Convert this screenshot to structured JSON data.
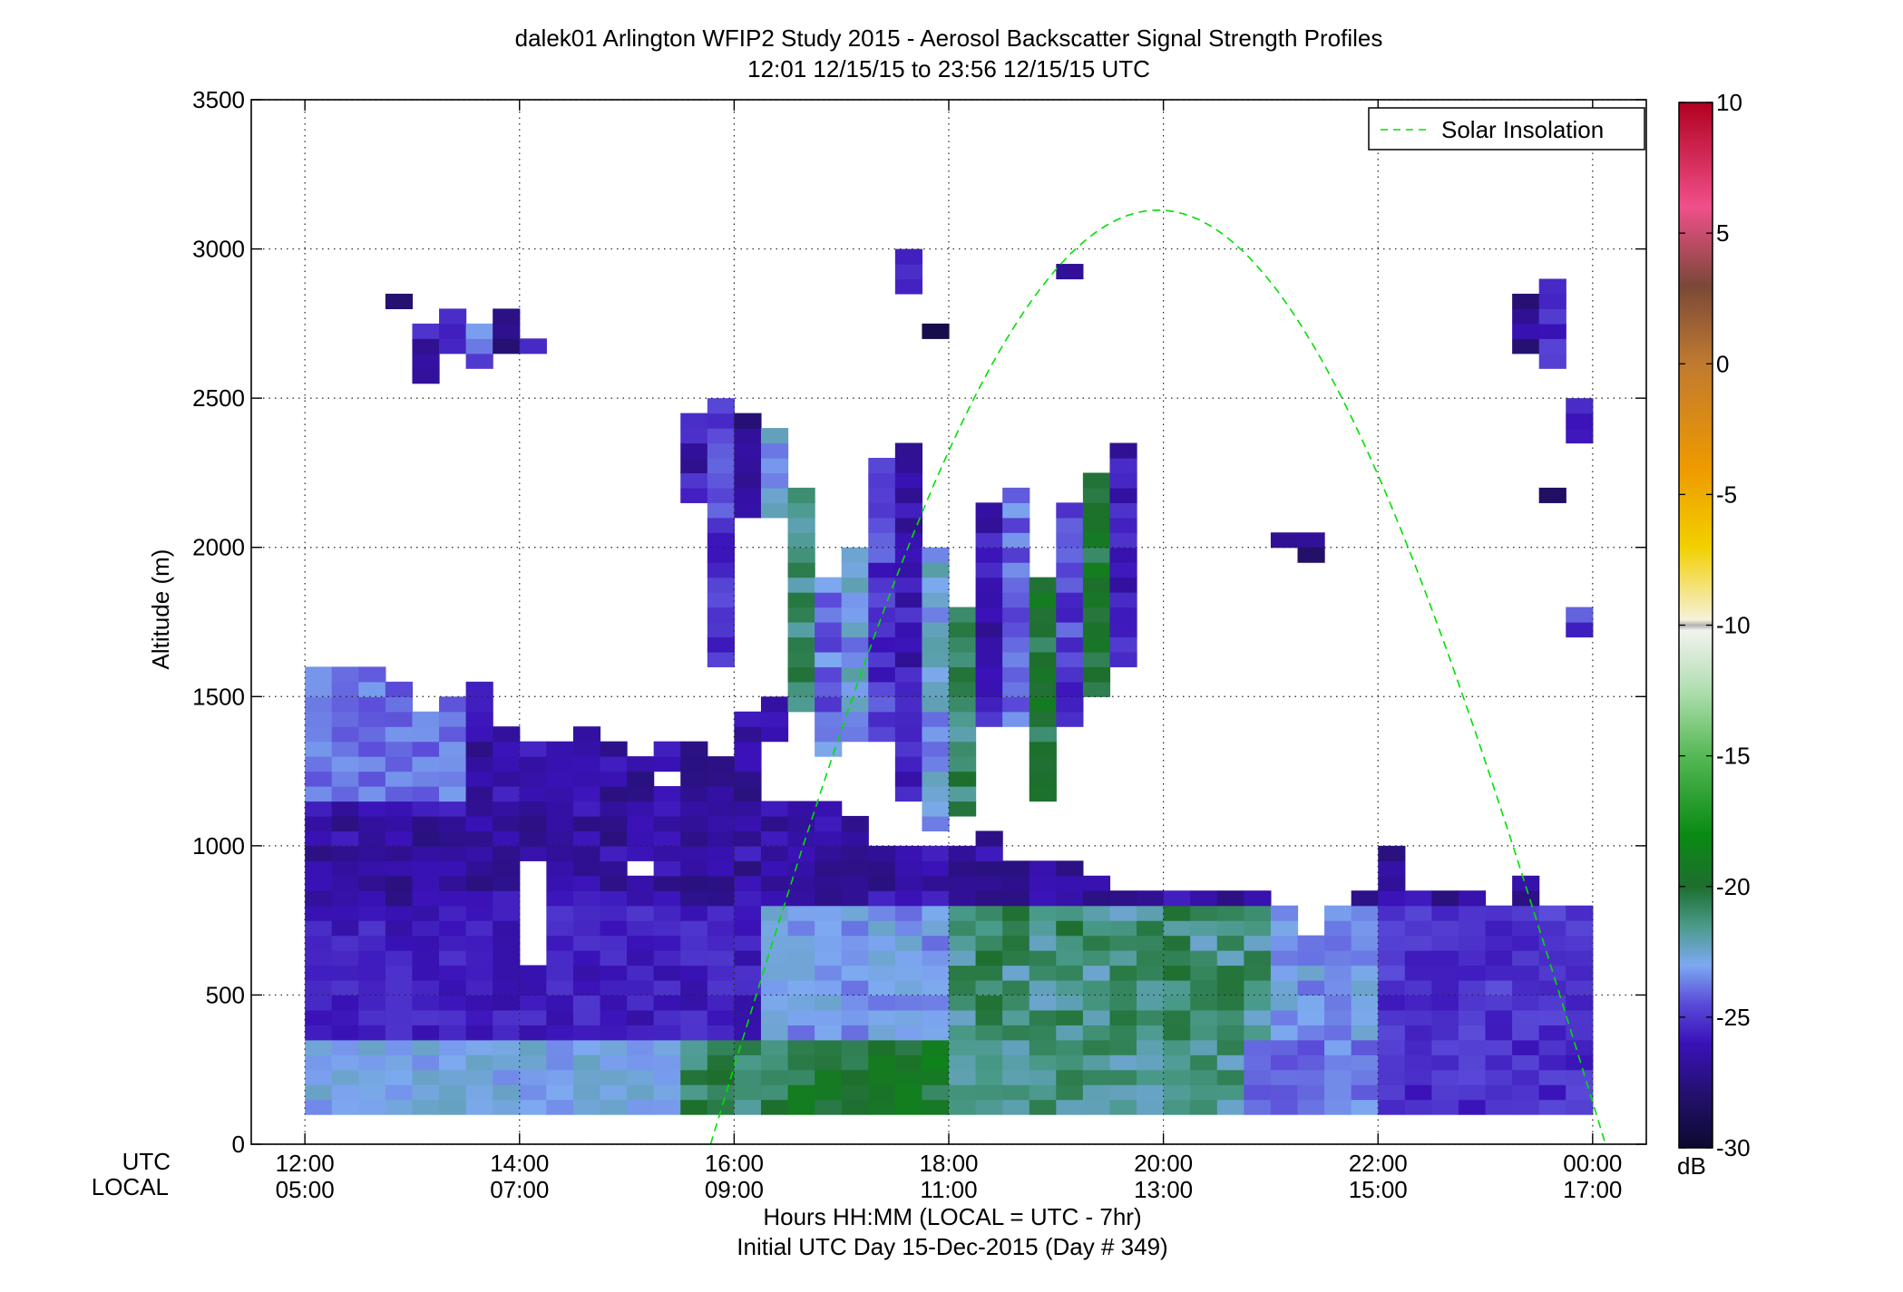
{
  "chart_data": {
    "type": "heatmap",
    "title": "dalek01 Arlington WFIP2 Study 2015 - Aerosol Backscatter Signal Strength Profiles",
    "subtitle": "12:01 12/15/15 to 23:56 12/15/15  UTC",
    "ylabel": "Altitude (m)",
    "xlabel": "Hours HH:MM  (LOCAL = UTC - 7hr)",
    "xlabel2": "Initial UTC Day 15-Dec-2015 (Day # 349)",
    "x_row_labels": [
      "UTC",
      "LOCAL"
    ],
    "xlim_utc_hours": [
      11.5,
      24.5
    ],
    "ylim": [
      0,
      3500
    ],
    "grid": true,
    "y_ticks": [
      "0",
      "500",
      "1000",
      "1500",
      "2000",
      "2500",
      "3000",
      "3500"
    ],
    "x_ticks_utc": [
      "12:00",
      "14:00",
      "16:00",
      "18:00",
      "20:00",
      "22:00",
      "00:00"
    ],
    "x_ticks_local": [
      "05:00",
      "07:00",
      "09:00",
      "11:00",
      "13:00",
      "15:00",
      "17:00"
    ],
    "x_tick_hours": [
      12,
      14,
      16,
      18,
      20,
      22,
      24
    ],
    "legend": {
      "placement": "top-right",
      "entries": [
        "Solar Insolation"
      ]
    },
    "solar_insolation": {
      "color": "#00e000",
      "style": "dashed",
      "sunrise_utc_h": 15.78,
      "sunset_utc_h": 24.12,
      "peak_utc_h": 19.95,
      "peak_altitude_m": 3130
    },
    "colorbar": {
      "range": [
        -30,
        10
      ],
      "ticks": [
        "10",
        "5",
        "0",
        "-5",
        "-10",
        "-15",
        "-20",
        "-25",
        "-30"
      ],
      "unit": "dB",
      "stops": [
        {
          "v": -30,
          "c": "#0a0a30"
        },
        {
          "v": -28,
          "c": "#24106a"
        },
        {
          "v": -26,
          "c": "#3a12b8"
        },
        {
          "v": -24.5,
          "c": "#5a4ad8"
        },
        {
          "v": -23,
          "c": "#7da9f0"
        },
        {
          "v": -21.5,
          "c": "#4a9a8a"
        },
        {
          "v": -20,
          "c": "#1e6e2e"
        },
        {
          "v": -18,
          "c": "#0a8a14"
        },
        {
          "v": -15,
          "c": "#55b855"
        },
        {
          "v": -12.5,
          "c": "#b0deb0"
        },
        {
          "v": -10.2,
          "c": "#f2f2ee"
        },
        {
          "v": -10,
          "c": "#b0b0b0"
        },
        {
          "v": -9.8,
          "c": "#f5f2da"
        },
        {
          "v": -7,
          "c": "#f2d000"
        },
        {
          "v": -4,
          "c": "#ee9a00"
        },
        {
          "v": 0,
          "c": "#c07a30"
        },
        {
          "v": 3,
          "c": "#7a4838"
        },
        {
          "v": 6,
          "c": "#f0508a"
        },
        {
          "v": 10,
          "c": "#b00020"
        }
      ]
    },
    "grid_cells": {
      "time_step_h": 0.25,
      "alt_step_m": 50
    },
    "boundary_layer_top_m": [
      [
        12.0,
        1600
      ],
      [
        12.5,
        1600
      ],
      [
        12.75,
        1550
      ],
      [
        13.0,
        1450
      ],
      [
        13.25,
        1500
      ],
      [
        13.5,
        1550
      ],
      [
        13.75,
        1400
      ],
      [
        14.0,
        1350
      ],
      [
        14.25,
        1350
      ],
      [
        14.5,
        1400
      ],
      [
        14.75,
        1350
      ],
      [
        15.0,
        1300
      ],
      [
        15.25,
        1350
      ],
      [
        15.75,
        1300
      ],
      [
        16.0,
        1450
      ],
      [
        16.25,
        1500
      ],
      [
        16.5,
        1150
      ],
      [
        17.0,
        1100
      ],
      [
        17.5,
        1000
      ],
      [
        18.0,
        1000
      ],
      [
        18.25,
        1050
      ],
      [
        18.5,
        950
      ],
      [
        19.0,
        950
      ],
      [
        19.25,
        900
      ],
      [
        19.5,
        850
      ],
      [
        20.0,
        850
      ],
      [
        20.5,
        850
      ],
      [
        21.0,
        800
      ],
      [
        21.25,
        700
      ],
      [
        21.5,
        800
      ],
      [
        21.75,
        850
      ],
      [
        22.0,
        1000
      ],
      [
        22.25,
        850
      ],
      [
        22.75,
        850
      ],
      [
        23.0,
        800
      ],
      [
        23.25,
        900
      ],
      [
        23.5,
        800
      ],
      [
        24.0,
        850
      ],
      [
        24.0,
        850
      ]
    ],
    "elevated_layers": [
      {
        "t0": 12.75,
        "t1": 13.0,
        "z0": 2800,
        "z1": 2850,
        "db": -27
      },
      {
        "t0": 13.0,
        "t1": 13.25,
        "z0": 2550,
        "z1": 2750,
        "db": -26
      },
      {
        "t0": 13.25,
        "t1": 13.5,
        "z0": 2650,
        "z1": 2800,
        "db": -26
      },
      {
        "t0": 13.5,
        "t1": 13.75,
        "z0": 2600,
        "z1": 2750,
        "db": -24
      },
      {
        "t0": 13.75,
        "t1": 14.0,
        "z0": 2650,
        "z1": 2800,
        "db": -27
      },
      {
        "t0": 14.0,
        "t1": 14.25,
        "z0": 2650,
        "z1": 2700,
        "db": -26
      },
      {
        "t0": 15.5,
        "t1": 15.75,
        "z0": 2150,
        "z1": 2450,
        "db": -26
      },
      {
        "t0": 15.75,
        "t1": 16.0,
        "z0": 1600,
        "z1": 2500,
        "db": -25
      },
      {
        "t0": 16.0,
        "t1": 16.25,
        "z0": 2100,
        "z1": 2450,
        "db": -27
      },
      {
        "t0": 16.25,
        "t1": 16.5,
        "z0": 2100,
        "z1": 2400,
        "db": -23
      },
      {
        "t0": 16.5,
        "t1": 16.75,
        "z0": 1450,
        "z1": 2200,
        "db": -21
      },
      {
        "t0": 16.75,
        "t1": 17.0,
        "z0": 1300,
        "z1": 1900,
        "db": -24
      },
      {
        "t0": 17.0,
        "t1": 17.25,
        "z0": 1350,
        "z1": 2000,
        "db": -23
      },
      {
        "t0": 17.25,
        "t1": 17.5,
        "z0": 1350,
        "z1": 2300,
        "db": -25
      },
      {
        "t0": 17.5,
        "t1": 17.75,
        "z0": 1150,
        "z1": 2350,
        "db": -26
      },
      {
        "t0": 17.75,
        "t1": 18.0,
        "z0": 1050,
        "z1": 2000,
        "db": -23
      },
      {
        "t0": 18.0,
        "t1": 18.25,
        "z0": 1100,
        "z1": 1800,
        "db": -21
      },
      {
        "t0": 18.25,
        "t1": 18.5,
        "z0": 1400,
        "z1": 2150,
        "db": -26
      },
      {
        "t0": 18.5,
        "t1": 18.75,
        "z0": 1400,
        "z1": 2200,
        "db": -24
      },
      {
        "t0": 18.75,
        "t1": 19.0,
        "z0": 1150,
        "z1": 1900,
        "db": -20
      },
      {
        "t0": 19.0,
        "t1": 19.25,
        "z0": 1400,
        "z1": 2150,
        "db": -25
      },
      {
        "t0": 19.25,
        "t1": 19.5,
        "z0": 1500,
        "z1": 2250,
        "db": -20
      },
      {
        "t0": 19.5,
        "t1": 19.75,
        "z0": 1600,
        "z1": 2350,
        "db": -26
      },
      {
        "t0": 17.5,
        "t1": 17.75,
        "z0": 2850,
        "z1": 3000,
        "db": -26
      },
      {
        "t0": 17.75,
        "t1": 18.0,
        "z0": 2700,
        "z1": 2750,
        "db": -28
      },
      {
        "t0": 19.0,
        "t1": 19.25,
        "z0": 2900,
        "z1": 2950,
        "db": -26
      },
      {
        "t0": 21.0,
        "t1": 21.5,
        "z0": 2000,
        "z1": 2050,
        "db": -27
      },
      {
        "t0": 21.25,
        "t1": 21.5,
        "z0": 1950,
        "z1": 2000,
        "db": -27
      },
      {
        "t0": 23.25,
        "t1": 23.5,
        "z0": 2650,
        "z1": 2850,
        "db": -27
      },
      {
        "t0": 23.5,
        "t1": 23.75,
        "z0": 2600,
        "z1": 2900,
        "db": -25
      },
      {
        "t0": 23.5,
        "t1": 23.75,
        "z0": 2150,
        "z1": 2200,
        "db": -28
      },
      {
        "t0": 23.75,
        "t1": 24.0,
        "z0": 2350,
        "z1": 2500,
        "db": -26
      },
      {
        "t0": 23.75,
        "t1": 24.0,
        "z0": 1700,
        "z1": 1800,
        "db": -25
      }
    ]
  }
}
